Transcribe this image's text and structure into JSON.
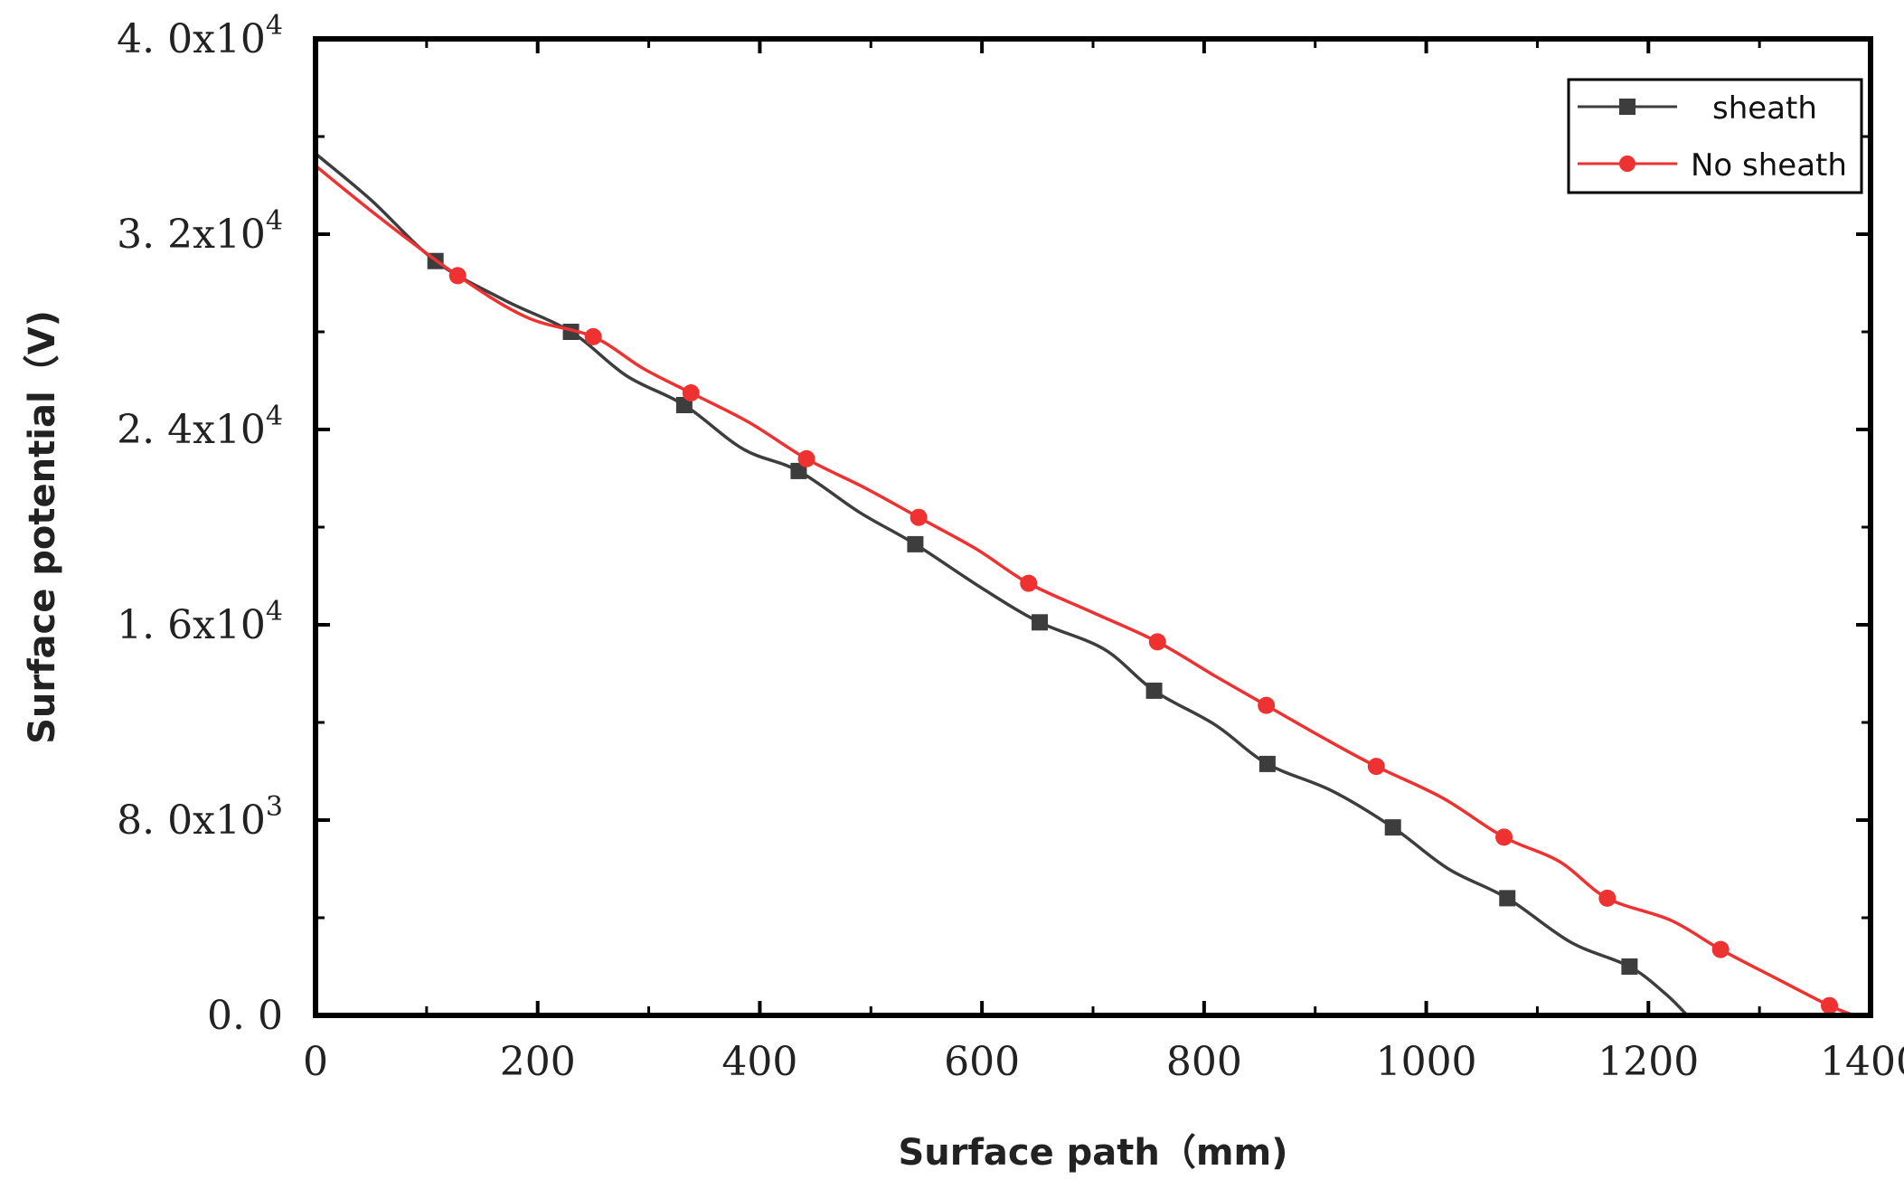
{
  "chart_data": {
    "type": "line",
    "title": "",
    "xlabel": "Surface path（mm)",
    "ylabel": "Surface potential（V)",
    "xlim": [
      0,
      1400
    ],
    "ylim": [
      0,
      40000
    ],
    "x_ticks": [
      {
        "value": 0,
        "label": "0"
      },
      {
        "value": 200,
        "label": "200"
      },
      {
        "value": 400,
        "label": "400"
      },
      {
        "value": 600,
        "label": "600"
      },
      {
        "value": 800,
        "label": "800"
      },
      {
        "value": 1000,
        "label": "1000"
      },
      {
        "value": 1200,
        "label": "1200"
      },
      {
        "value": 1400,
        "label": "1400"
      }
    ],
    "y_ticks": [
      {
        "value": 0,
        "label": "0. 0",
        "sup": ""
      },
      {
        "value": 8000,
        "label": "8. 0x10",
        "sup": "3"
      },
      {
        "value": 16000,
        "label": "1. 6x10",
        "sup": "4"
      },
      {
        "value": 24000,
        "label": "2. 4x10",
        "sup": "4"
      },
      {
        "value": 32000,
        "label": "3. 2x10",
        "sup": "4"
      },
      {
        "value": 40000,
        "label": "4. 0x10",
        "sup": "4"
      }
    ],
    "x_minor_step": 100,
    "y_minor_step": 4000,
    "grid": false,
    "legend_position": "top-right",
    "series": [
      {
        "name": "sheath",
        "color": "#3d3d3d",
        "marker": "square",
        "curve": [
          [
            0,
            35300
          ],
          [
            50,
            33400
          ],
          [
            108,
            30900
          ],
          [
            170,
            29300
          ],
          [
            230,
            28000
          ],
          [
            280,
            26200
          ],
          [
            332,
            25000
          ],
          [
            385,
            23200
          ],
          [
            435,
            22300
          ],
          [
            490,
            20600
          ],
          [
            540,
            19300
          ],
          [
            600,
            17500
          ],
          [
            652,
            16100
          ],
          [
            710,
            15000
          ],
          [
            755,
            13300
          ],
          [
            810,
            11900
          ],
          [
            857,
            10300
          ],
          [
            915,
            9200
          ],
          [
            970,
            7700
          ],
          [
            1020,
            6000
          ],
          [
            1073,
            4800
          ],
          [
            1130,
            3000
          ],
          [
            1183,
            2000
          ],
          [
            1215,
            900
          ],
          [
            1235,
            0
          ]
        ],
        "markers": [
          [
            108,
            30900
          ],
          [
            230,
            28000
          ],
          [
            332,
            25000
          ],
          [
            435,
            22300
          ],
          [
            540,
            19300
          ],
          [
            652,
            16100
          ],
          [
            755,
            13300
          ],
          [
            857,
            10300
          ],
          [
            970,
            7700
          ],
          [
            1073,
            4800
          ],
          [
            1183,
            2000
          ]
        ]
      },
      {
        "name": "No sheath",
        "color": "#ee3131",
        "marker": "circle",
        "curve": [
          [
            0,
            34800
          ],
          [
            60,
            32600
          ],
          [
            128,
            30300
          ],
          [
            190,
            28600
          ],
          [
            250,
            27800
          ],
          [
            295,
            26500
          ],
          [
            338,
            25500
          ],
          [
            390,
            24300
          ],
          [
            442,
            22800
          ],
          [
            495,
            21600
          ],
          [
            543,
            20400
          ],
          [
            595,
            19100
          ],
          [
            642,
            17700
          ],
          [
            700,
            16500
          ],
          [
            758,
            15300
          ],
          [
            810,
            13900
          ],
          [
            856,
            12700
          ],
          [
            910,
            11300
          ],
          [
            955,
            10200
          ],
          [
            1015,
            8900
          ],
          [
            1070,
            7300
          ],
          [
            1120,
            6300
          ],
          [
            1163,
            4800
          ],
          [
            1220,
            3900
          ],
          [
            1265,
            2700
          ],
          [
            1320,
            1400
          ],
          [
            1363,
            400
          ],
          [
            1385,
            0
          ]
        ],
        "markers": [
          [
            128,
            30300
          ],
          [
            250,
            27800
          ],
          [
            338,
            25500
          ],
          [
            442,
            22800
          ],
          [
            543,
            20400
          ],
          [
            642,
            17700
          ],
          [
            758,
            15300
          ],
          [
            856,
            12700
          ],
          [
            955,
            10200
          ],
          [
            1070,
            7300
          ],
          [
            1163,
            4800
          ],
          [
            1265,
            2700
          ],
          [
            1363,
            400
          ]
        ]
      }
    ]
  }
}
